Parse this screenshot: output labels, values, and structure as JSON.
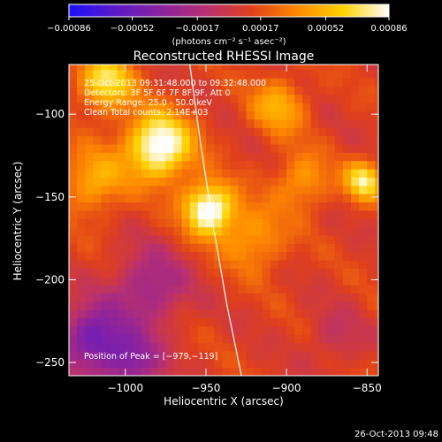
{
  "chart_data": {
    "type": "heatmap",
    "title": "Reconstructed RHESSI Image",
    "xlabel": "Heliocentric X (arcsec)",
    "ylabel": "Heliocentric Y (arcsec)",
    "xlim": [
      -1035,
      -843
    ],
    "ylim": [
      -258,
      -70
    ],
    "x_ticks": [
      -1000,
      -950,
      -900,
      -850
    ],
    "x_tick_labels": [
      "−1000",
      "−950",
      "−900",
      "−850"
    ],
    "y_ticks": [
      -100,
      -150,
      -200,
      -250
    ],
    "y_tick_labels": [
      "−100",
      "−150",
      "−200",
      "−250"
    ],
    "colorbar": {
      "min": -0.00086,
      "max": 0.00086,
      "ticks": [
        -0.00086,
        -0.00052,
        -0.00017,
        0.00017,
        0.00052,
        0.00086
      ],
      "tick_labels": [
        "−0.00086",
        "−0.00052",
        "−0.00017",
        "0.00017",
        "0.00052",
        "0.00086"
      ],
      "unit_label": "(photons cm⁻² s⁻¹ asec⁻²)",
      "colors": [
        "#1a10ff",
        "#5a1ac8",
        "#8a22a0",
        "#b83070",
        "#e0401a",
        "#ff8a00",
        "#ffd200",
        "#ffffff"
      ]
    },
    "annotations": [
      "25-Oct-2013 09:31:48.000 to 09:32:48.000",
      "Detectors: 3F 5F 6F 7F 8F 9F, Att 0",
      "Energy Range: 25.0 - 50.0 keV",
      "Clean     Total counts: 2.14E+03"
    ],
    "peak_label": "Position of Peak = [−979,−119]",
    "peak": {
      "x": -979,
      "y": -119
    },
    "limb_curve": [
      {
        "x": -960,
        "y": -70
      },
      {
        "x": -953,
        "y": -120
      },
      {
        "x": -945,
        "y": -170
      },
      {
        "x": -937,
        "y": -215
      },
      {
        "x": -928,
        "y": -258
      }
    ],
    "intensity_sources": [
      {
        "x": -979,
        "y": -119,
        "sigma": 14,
        "amplitude": 1.0
      },
      {
        "x": -948,
        "y": -157,
        "sigma": 11,
        "amplitude": 1.0
      },
      {
        "x": -1012,
        "y": -80,
        "sigma": 12,
        "amplitude": 0.7
      },
      {
        "x": -852,
        "y": -140,
        "sigma": 8,
        "amplitude": 0.75
      },
      {
        "x": -905,
        "y": -95,
        "sigma": 12,
        "amplitude": 0.45
      },
      {
        "x": -920,
        "y": -175,
        "sigma": 14,
        "amplitude": 0.4
      },
      {
        "x": -890,
        "y": -140,
        "sigma": 12,
        "amplitude": 0.4
      },
      {
        "x": -1020,
        "y": -140,
        "sigma": 14,
        "amplitude": 0.45
      },
      {
        "x": -1020,
        "y": -235,
        "sigma": 14,
        "amplitude": -0.7
      },
      {
        "x": -985,
        "y": -205,
        "sigma": 16,
        "amplitude": -0.45
      },
      {
        "x": -995,
        "y": -250,
        "sigma": 12,
        "amplitude": -0.55
      },
      {
        "x": -870,
        "y": -235,
        "sigma": 12,
        "amplitude": -0.2
      }
    ]
  },
  "footer_date": "26-Oct-2013 09:48"
}
